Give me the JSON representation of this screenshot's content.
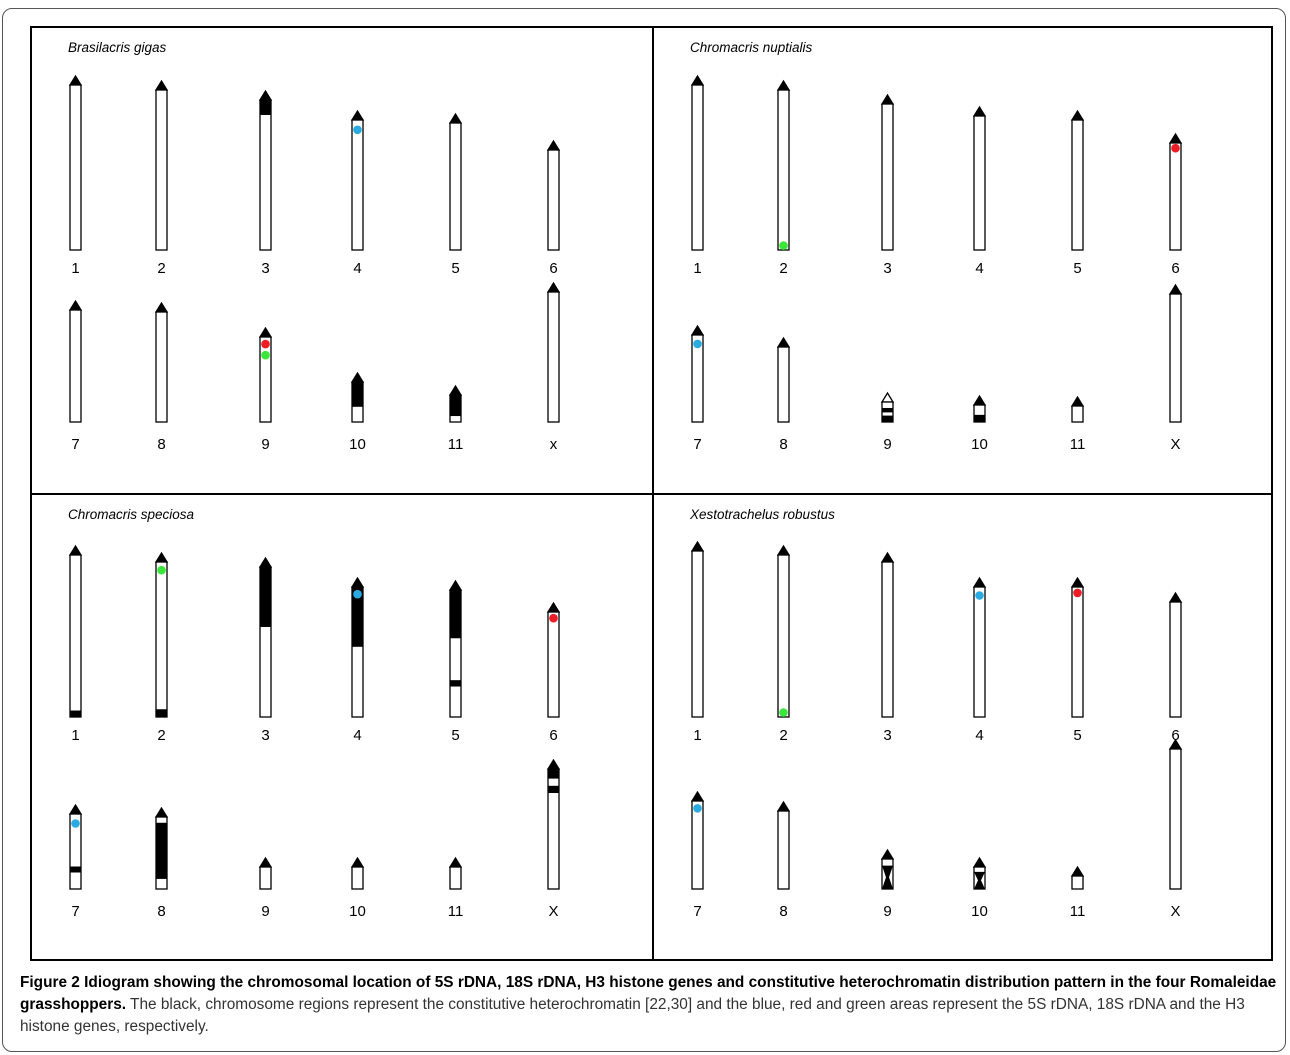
{
  "panels": [
    {
      "title": "Brasilacris gigas",
      "chromosomes": [
        {
          "label": "1",
          "len": 165,
          "het": [],
          "sig": []
        },
        {
          "label": "2",
          "len": 160,
          "het": [],
          "sig": []
        },
        {
          "label": "3",
          "len": 150,
          "het": [
            [
              0,
              0.1
            ]
          ],
          "sig": []
        },
        {
          "label": "4",
          "len": 130,
          "het": [],
          "sig": [
            [
              0.06,
              "blue"
            ]
          ]
        },
        {
          "label": "5",
          "len": 127,
          "het": [],
          "sig": []
        },
        {
          "label": "6",
          "len": 100,
          "het": [],
          "sig": []
        },
        {
          "label": "7",
          "len": 112,
          "het": [],
          "sig": []
        },
        {
          "label": "8",
          "len": 110,
          "het": [],
          "sig": []
        },
        {
          "label": "9",
          "len": 85,
          "het": [],
          "sig": [
            [
              0.06,
              "red"
            ],
            [
              0.19,
              "green"
            ]
          ]
        },
        {
          "label": "10",
          "len": 40,
          "het": [
            [
              0,
              0.62
            ]
          ],
          "sig": []
        },
        {
          "label": "11",
          "len": 27,
          "het": [
            [
              0,
              0.78
            ]
          ],
          "sig": []
        },
        {
          "label": "x",
          "len": 130,
          "het": [],
          "sig": []
        }
      ]
    },
    {
      "title": "Chromacris nuptialis",
      "chromosomes": [
        {
          "label": "1",
          "len": 165,
          "het": [],
          "sig": []
        },
        {
          "label": "2",
          "len": 160,
          "het": [],
          "sig": [
            [
              0.96,
              "green"
            ]
          ]
        },
        {
          "label": "3",
          "len": 146,
          "het": [],
          "sig": []
        },
        {
          "label": "4",
          "len": 134,
          "het": [],
          "sig": []
        },
        {
          "label": "5",
          "len": 130,
          "het": [],
          "sig": []
        },
        {
          "label": "6",
          "len": 107,
          "het": [],
          "sig": [
            [
              0.03,
              "red"
            ]
          ]
        },
        {
          "label": "7",
          "len": 87,
          "het": [],
          "sig": [
            [
              0.08,
              "blue"
            ]
          ]
        },
        {
          "label": "8",
          "len": 75,
          "het": [],
          "sig": []
        },
        {
          "label": "9",
          "len": 20,
          "het": [
            [
              0.3,
              0.52
            ],
            [
              0.68,
              1
            ]
          ],
          "sig": [],
          "open_tip": true
        },
        {
          "label": "10",
          "len": 17,
          "het": [
            [
              0.58,
              1
            ]
          ],
          "sig": []
        },
        {
          "label": "11",
          "len": 16,
          "het": [],
          "sig": []
        },
        {
          "label": "X",
          "len": 128,
          "het": [],
          "sig": []
        }
      ]
    },
    {
      "title": "Chromacris speciosa",
      "chromosomes": [
        {
          "label": "1",
          "len": 162,
          "het": [
            [
              0.96,
              1
            ]
          ],
          "sig": []
        },
        {
          "label": "2",
          "len": 155,
          "het": [
            [
              0.95,
              1
            ]
          ],
          "sig": [
            [
              0.04,
              "green"
            ]
          ]
        },
        {
          "label": "3",
          "len": 150,
          "het": [
            [
              0,
              0.4
            ]
          ],
          "sig": []
        },
        {
          "label": "4",
          "len": 130,
          "het": [
            [
              0,
              0.46
            ]
          ],
          "sig": [
            [
              0.04,
              "blue"
            ]
          ]
        },
        {
          "label": "5",
          "len": 127,
          "het": [
            [
              0,
              0.38
            ],
            [
              0.71,
              0.76
            ]
          ],
          "sig": []
        },
        {
          "label": "6",
          "len": 105,
          "het": [],
          "sig": [
            [
              0.04,
              "red"
            ]
          ]
        },
        {
          "label": "7",
          "len": 75,
          "het": [
            [
              0.7,
              0.78
            ]
          ],
          "sig": [
            [
              0.1,
              "blue"
            ]
          ]
        },
        {
          "label": "8",
          "len": 72,
          "het": [
            [
              0.08,
              0.86
            ]
          ],
          "sig": []
        },
        {
          "label": "9",
          "len": 22,
          "het": [],
          "sig": []
        },
        {
          "label": "10",
          "len": 22,
          "het": [],
          "sig": []
        },
        {
          "label": "11",
          "len": 22,
          "het": [],
          "sig": []
        },
        {
          "label": "X",
          "len": 120,
          "het": [
            [
              0,
              0.08
            ],
            [
              0.14,
              0.2
            ]
          ],
          "sig": []
        }
      ]
    },
    {
      "title": "Xestotrachelus robustus",
      "chromosomes": [
        {
          "label": "1",
          "len": 166,
          "het": [],
          "sig": []
        },
        {
          "label": "2",
          "len": 162,
          "het": [],
          "sig": [
            [
              0.96,
              "green"
            ]
          ]
        },
        {
          "label": "3",
          "len": 155,
          "het": [],
          "sig": []
        },
        {
          "label": "4",
          "len": 130,
          "het": [],
          "sig": [
            [
              0.05,
              "blue"
            ]
          ]
        },
        {
          "label": "5",
          "len": 130,
          "het": [],
          "sig": [
            [
              0.03,
              "red"
            ]
          ]
        },
        {
          "label": "6",
          "len": 115,
          "het": [],
          "sig": []
        },
        {
          "label": "7",
          "len": 88,
          "het": [],
          "sig": [
            [
              0.06,
              "blue"
            ]
          ]
        },
        {
          "label": "8",
          "len": 78,
          "het": [],
          "sig": []
        },
        {
          "label": "9",
          "len": 30,
          "het": [],
          "sig": [],
          "hourglass": true
        },
        {
          "label": "10",
          "len": 22,
          "het": [],
          "sig": [],
          "hourglass": true
        },
        {
          "label": "11",
          "len": 13,
          "het": [],
          "sig": []
        },
        {
          "label": "X",
          "len": 140,
          "het": [],
          "sig": []
        }
      ]
    }
  ],
  "colors": {
    "blue": "#29abe2",
    "red": "#ee1c24",
    "green": "#39e639"
  },
  "caption": {
    "bold": "Figure 2 Idiogram showing the chromosomal location of 5S rDNA, 18S rDNA, H3 histone genes and constitutive heterochromatin distribution pattern in the four Romaleidae grasshoppers.",
    "rest": " The black, chromosome regions represent the constitutive heterochromatin [22,30] and the blue, red and green areas represent the 5S rDNA, 18S rDNA and the H3 histone genes, respectively."
  }
}
